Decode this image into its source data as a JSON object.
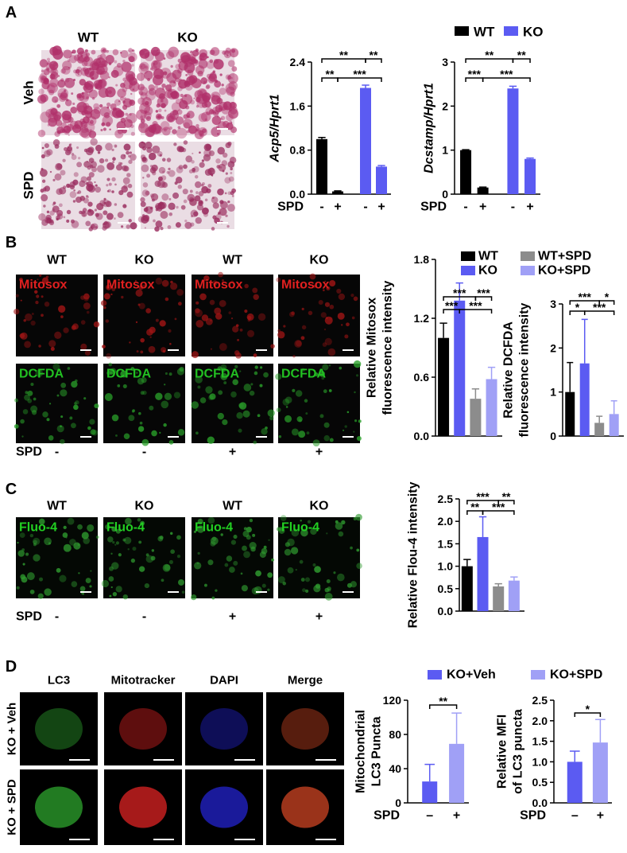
{
  "panel_labels": [
    "A",
    "B",
    "C",
    "D"
  ],
  "panel_a": {
    "columns": [
      "WT",
      "KO"
    ],
    "rows": [
      "Veh",
      "SPD"
    ],
    "legend": [
      {
        "name": "WT",
        "color": "#000000"
      },
      {
        "name": "KO",
        "color": "#5b5bf2"
      }
    ]
  },
  "panel_b": {
    "columns": [
      "WT",
      "KO",
      "WT",
      "KO"
    ],
    "stains": [
      "Mitosox",
      "DCFDA"
    ],
    "treatment_label": "SPD",
    "treatment": [
      "-",
      "-",
      "+",
      "+"
    ],
    "legend": [
      {
        "name": "WT",
        "color": "#000000"
      },
      {
        "name": "KO",
        "color": "#5b5bf2"
      },
      {
        "name": "WT+SPD",
        "color": "#8c8c8c"
      },
      {
        "name": "KO+SPD",
        "color": "#a0a0f6"
      }
    ]
  },
  "panel_c": {
    "columns": [
      "WT",
      "KO",
      "WT",
      "KO"
    ],
    "stain": "Fluo-4",
    "treatment_label": "SPD",
    "treatment": [
      "-",
      "-",
      "+",
      "+"
    ]
  },
  "panel_d": {
    "columns": [
      "LC3",
      "Mitotracker",
      "DAPI",
      "Merge"
    ],
    "rows": [
      "KO + Veh",
      "KO + SPD"
    ],
    "legend": [
      {
        "name": "KO+Veh",
        "color": "#5b5bf2"
      },
      {
        "name": "KO+SPD",
        "color": "#a0a0f6"
      }
    ]
  },
  "chart_data": [
    {
      "type": "bar",
      "ylabel": [
        "Acp5/Hprt1"
      ],
      "x_label": "SPD",
      "categories": [
        "-",
        "+",
        "-",
        "+"
      ],
      "values": [
        1.0,
        0.05,
        1.93,
        0.5
      ],
      "errors": [
        0.03,
        0.01,
        0.05,
        0.02
      ],
      "colors": [
        "#000000",
        "#000000",
        "#5b5bf2",
        "#5b5bf2"
      ],
      "ylim": [
        0,
        2.4
      ],
      "yticks": [
        {
          "value": 0,
          "label": "0.0"
        },
        0.8,
        1.6,
        2.4
      ],
      "significance": [
        "**",
        "**",
        "**",
        "***"
      ]
    },
    {
      "type": "bar",
      "ylabel": [
        "Dcstamp/Hprt1"
      ],
      "x_label": "SPD",
      "categories": [
        "-",
        "+",
        "-",
        "+"
      ],
      "values": [
        1.0,
        0.15,
        2.4,
        0.8
      ],
      "errors": [
        0.01,
        0.01,
        0.05,
        0.02
      ],
      "colors": [
        "#000000",
        "#000000",
        "#5b5bf2",
        "#5b5bf2"
      ],
      "ylim": [
        0,
        3
      ],
      "yticks": [
        0,
        1,
        2,
        3
      ],
      "significance": [
        "**",
        "**",
        "***",
        "***"
      ]
    },
    {
      "type": "bar",
      "ylabel": [
        "Relative Mitosox",
        "fluorescence intensity"
      ],
      "values": [
        1.0,
        1.38,
        0.38,
        0.58
      ],
      "errors": [
        0.15,
        0.18,
        0.1,
        0.12
      ],
      "colors": [
        "#000000",
        "#5b5bf2",
        "#8c8c8c",
        "#a0a0f6"
      ],
      "ylim": [
        0,
        1.8
      ],
      "yticks": [
        {
          "value": 0,
          "label": "0.0"
        },
        0.6,
        1.2,
        1.8
      ],
      "significance": [
        "***",
        "***",
        "***",
        "***"
      ]
    },
    {
      "type": "bar",
      "ylabel": [
        "Relative DCFDA",
        "fluorescence intensity"
      ],
      "values": [
        1.0,
        1.65,
        0.3,
        0.5
      ],
      "errors": [
        0.67,
        1.0,
        0.15,
        0.3
      ],
      "colors": [
        "#000000",
        "#5b5bf2",
        "#8c8c8c",
        "#a0a0f6"
      ],
      "ylim": [
        0,
        3
      ],
      "yticks": [
        0,
        1,
        2,
        3
      ],
      "significance": [
        "***",
        "*",
        "*",
        "***"
      ]
    },
    {
      "type": "bar",
      "ylabel": [
        "Relative Flou-4 intensity"
      ],
      "values": [
        1.0,
        1.65,
        0.55,
        0.68
      ],
      "errors": [
        0.15,
        0.45,
        0.06,
        0.08
      ],
      "colors": [
        "#000000",
        "#5b5bf2",
        "#8c8c8c",
        "#a0a0f6"
      ],
      "ylim": [
        0,
        2.5
      ],
      "yticks": [
        {
          "value": 0,
          "label": "0.0"
        },
        0.5,
        {
          "value": 1,
          "label": "1.0"
        },
        1.5,
        {
          "value": 2,
          "label": "2.0"
        },
        2.5
      ],
      "significance": [
        "***",
        "**",
        "**",
        "***"
      ]
    },
    {
      "type": "bar",
      "ylabel": [
        "Mitochondrial",
        "LC3 Puncta"
      ],
      "x_label": "SPD",
      "categories": [
        "–",
        "+"
      ],
      "values": [
        25,
        69
      ],
      "errors": [
        20,
        36
      ],
      "colors": [
        "#5b5bf2",
        "#a0a0f6"
      ],
      "ylim": [
        0,
        120
      ],
      "yticks": [
        0,
        40,
        80,
        120
      ],
      "significance": [
        "**"
      ]
    },
    {
      "type": "bar",
      "ylabel": [
        "Relative MFI",
        "of LC3 puncta"
      ],
      "x_label": "SPD",
      "categories": [
        "–",
        "+"
      ],
      "values": [
        1.0,
        1.47
      ],
      "errors": [
        0.26,
        0.56
      ],
      "colors": [
        "#5b5bf2",
        "#a0a0f6"
      ],
      "ylim": [
        0,
        2.5
      ],
      "yticks": [
        {
          "value": 0,
          "label": "0.0"
        },
        0.5,
        {
          "value": 1,
          "label": "1.0"
        },
        1.5,
        {
          "value": 2,
          "label": "2.0"
        },
        2.5
      ],
      "significance": [
        "*"
      ]
    }
  ]
}
